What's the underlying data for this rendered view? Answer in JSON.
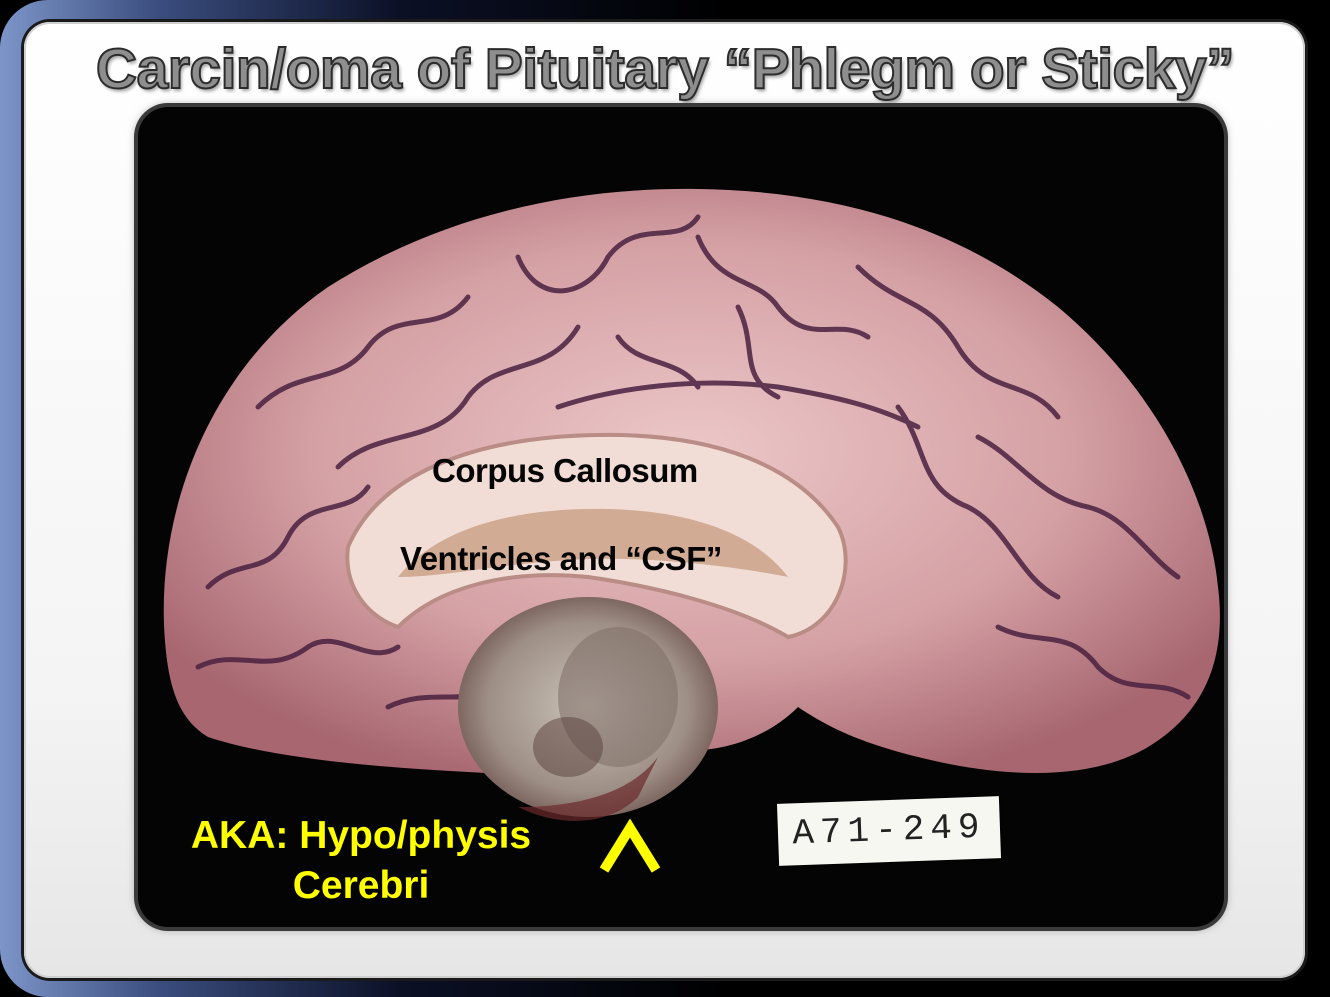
{
  "slide": {
    "title": "Carcin/oma of Pituitary “Phlegm or Sticky”"
  },
  "photo": {
    "labels": {
      "corpus_callosum": "Corpus Callosum",
      "ventricles": "Ventricles and “CSF”",
      "aka_line1": "AKA: Hypo/physis",
      "aka_line2": "Cerebri"
    },
    "specimen_tag": "A71-249",
    "pointer_icon": "caret-up-icon"
  },
  "colors": {
    "title_fill": "#8e8e8e",
    "label_yellow": "#ffff00",
    "brain_tissue": "#d9a8ab",
    "background": "#040404"
  }
}
